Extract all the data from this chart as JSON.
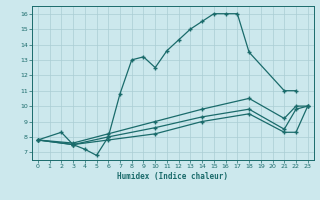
{
  "background_color": "#cce8ed",
  "grid_color": "#aacdd4",
  "line_color": "#1a6b6b",
  "xlabel": "Humidex (Indice chaleur)",
  "xlim": [
    -0.5,
    23.5
  ],
  "ylim": [
    6.5,
    16.5
  ],
  "yticks": [
    7,
    8,
    9,
    10,
    11,
    12,
    13,
    14,
    15,
    16
  ],
  "xticks": [
    0,
    1,
    2,
    3,
    4,
    5,
    6,
    7,
    8,
    9,
    10,
    11,
    12,
    13,
    14,
    15,
    16,
    17,
    18,
    19,
    20,
    21,
    22,
    23
  ],
  "line1_x": [
    0,
    2,
    3,
    4,
    5,
    6,
    7,
    8,
    9,
    10,
    11,
    12,
    13,
    14,
    15,
    16,
    17,
    18,
    21,
    22
  ],
  "line1_y": [
    7.8,
    8.3,
    7.5,
    7.2,
    6.8,
    8.0,
    10.8,
    13.0,
    13.2,
    12.5,
    13.6,
    14.3,
    15.0,
    15.5,
    16.0,
    16.0,
    16.0,
    13.5,
    11.0,
    11.0
  ],
  "line2_x": [
    0,
    3,
    6,
    10,
    14,
    18,
    21,
    22,
    23
  ],
  "line2_y": [
    7.8,
    7.5,
    7.8,
    8.2,
    9.0,
    9.5,
    8.3,
    8.3,
    10.0
  ],
  "line3_x": [
    0,
    3,
    6,
    10,
    14,
    18,
    21,
    22,
    23
  ],
  "line3_y": [
    7.8,
    7.5,
    8.0,
    8.6,
    9.3,
    9.8,
    8.5,
    9.8,
    10.0
  ],
  "line4_x": [
    0,
    3,
    6,
    10,
    14,
    18,
    21,
    22,
    23
  ],
  "line4_y": [
    7.8,
    7.6,
    8.2,
    9.0,
    9.8,
    10.5,
    9.2,
    10.0,
    10.0
  ]
}
